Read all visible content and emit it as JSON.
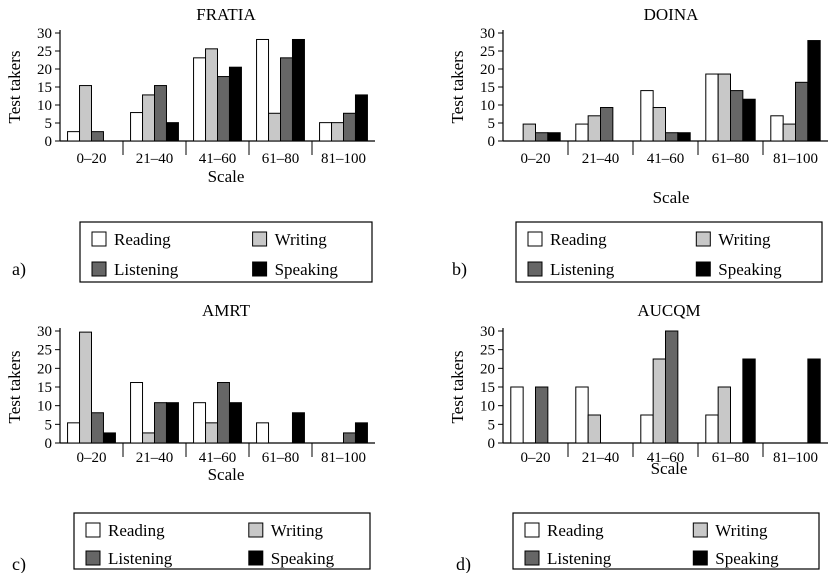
{
  "colors": {
    "Reading": "#ffffff",
    "Writing": "#c8c8c8",
    "Listening": "#666666",
    "Speaking": "#000000",
    "outline": "#000000"
  },
  "chart_data": [
    {
      "panel_label": "a)",
      "type": "bar",
      "title": "FRATIA",
      "xlabel": "Scale",
      "ylabel": "Test takers",
      "ylim": [
        0,
        30
      ],
      "yticks": [
        0,
        5,
        10,
        15,
        20,
        25,
        30
      ],
      "categories": [
        "0–20",
        "21–40",
        "41–60",
        "61–80",
        "81–100"
      ],
      "legend_placement": "bottom",
      "series": [
        {
          "name": "Reading",
          "values": [
            2.6,
            7.9,
            23.1,
            28.2,
            5.1
          ]
        },
        {
          "name": "Writing",
          "values": [
            15.4,
            12.8,
            25.6,
            7.7,
            5.1
          ]
        },
        {
          "name": "Listening",
          "values": [
            2.6,
            15.4,
            17.9,
            23.1,
            7.7
          ]
        },
        {
          "name": "Speaking",
          "values": [
            0,
            5.1,
            20.5,
            28.2,
            12.8
          ]
        }
      ]
    },
    {
      "panel_label": "b)",
      "type": "bar",
      "title": "DOINA",
      "xlabel": "Scale",
      "ylabel": "Test takers",
      "ylim": [
        0,
        30
      ],
      "yticks": [
        0,
        5,
        10,
        15,
        20,
        25,
        30
      ],
      "categories": [
        "0–20",
        "21–40",
        "41–60",
        "61–80",
        "81–100"
      ],
      "legend_placement": "bottom",
      "series": [
        {
          "name": "Reading",
          "values": [
            0,
            4.7,
            14,
            18.6,
            7
          ]
        },
        {
          "name": "Writing",
          "values": [
            4.7,
            7,
            9.3,
            18.6,
            4.7
          ]
        },
        {
          "name": "Listening",
          "values": [
            2.3,
            9.3,
            2.3,
            14,
            16.3
          ]
        },
        {
          "name": "Speaking",
          "values": [
            2.3,
            0,
            2.3,
            11.6,
            27.9
          ]
        }
      ]
    },
    {
      "panel_label": "c)",
      "type": "bar",
      "title": "AMRT",
      "xlabel": "Scale",
      "ylabel": "Test takers",
      "ylim": [
        0,
        30
      ],
      "yticks": [
        0,
        5,
        10,
        15,
        20,
        25,
        30
      ],
      "categories": [
        "0–20",
        "21–40",
        "41–60",
        "61–80",
        "81–100"
      ],
      "legend_placement": "bottom",
      "series": [
        {
          "name": "Reading",
          "values": [
            5.4,
            16.2,
            10.8,
            5.4,
            0
          ]
        },
        {
          "name": "Writing",
          "values": [
            29.7,
            2.7,
            5.4,
            0,
            0
          ]
        },
        {
          "name": "Listening",
          "values": [
            8.1,
            10.8,
            16.2,
            0,
            2.7
          ]
        },
        {
          "name": "Speaking",
          "values": [
            2.7,
            10.8,
            10.8,
            8.1,
            5.4
          ]
        }
      ]
    },
    {
      "panel_label": "d)",
      "type": "bar",
      "title": "AUCQM",
      "xlabel": "Scale",
      "ylabel": "Test takers",
      "ylim": [
        0,
        30
      ],
      "yticks": [
        0,
        5,
        10,
        15,
        20,
        25,
        30
      ],
      "categories": [
        "0–20",
        "21–40",
        "41–60",
        "61–80",
        "81–100"
      ],
      "legend_placement": "bottom",
      "series": [
        {
          "name": "Reading",
          "values": [
            15,
            15,
            7.5,
            7.5,
            0
          ]
        },
        {
          "name": "Writing",
          "values": [
            0,
            7.5,
            22.5,
            15,
            0
          ]
        },
        {
          "name": "Listening",
          "values": [
            15,
            0,
            30,
            0,
            0
          ]
        },
        {
          "name": "Speaking",
          "values": [
            0,
            0,
            0,
            22.5,
            22.5
          ]
        }
      ]
    }
  ]
}
